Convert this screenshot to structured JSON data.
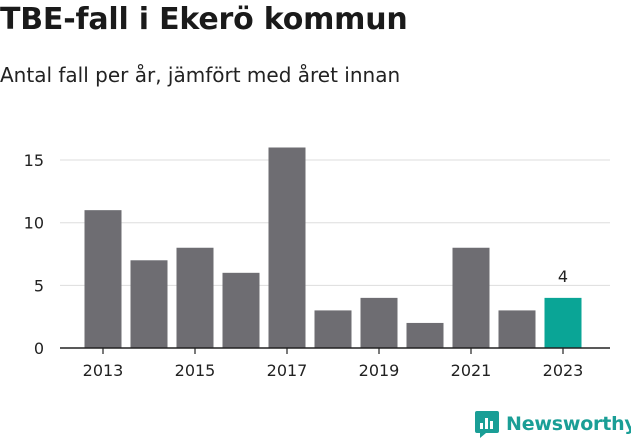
{
  "header": {
    "title": "TBE-fall i Ekerö kommun",
    "subtitle": "Antal fall per år, jämfört med året innan"
  },
  "brand": {
    "name": "Newsworthy",
    "icon": "newsworthy-logo-icon",
    "color": "#1a9e96"
  },
  "colors": {
    "bar": "#6e6d72",
    "highlight": "#0aa596",
    "grid": "#dddddd",
    "axis": "#222222"
  },
  "chart_data": {
    "type": "bar",
    "title": "TBE-fall i Ekerö kommun",
    "subtitle": "Antal fall per år, jämfört med året innan",
    "xlabel": "",
    "ylabel": "",
    "categories": [
      "2013",
      "2014",
      "2015",
      "2016",
      "2017",
      "2018",
      "2019",
      "2020",
      "2021",
      "2022",
      "2023"
    ],
    "values": [
      11,
      7,
      8,
      6,
      16,
      3,
      4,
      2,
      8,
      3,
      4
    ],
    "x_tick_labels": [
      "2013",
      "2015",
      "2017",
      "2019",
      "2021",
      "2023"
    ],
    "y_ticks": [
      0,
      5,
      10,
      15
    ],
    "ylim": [
      0,
      16
    ],
    "highlight_index": 10,
    "highlight_label": "4",
    "grid": true,
    "legend": "none"
  }
}
